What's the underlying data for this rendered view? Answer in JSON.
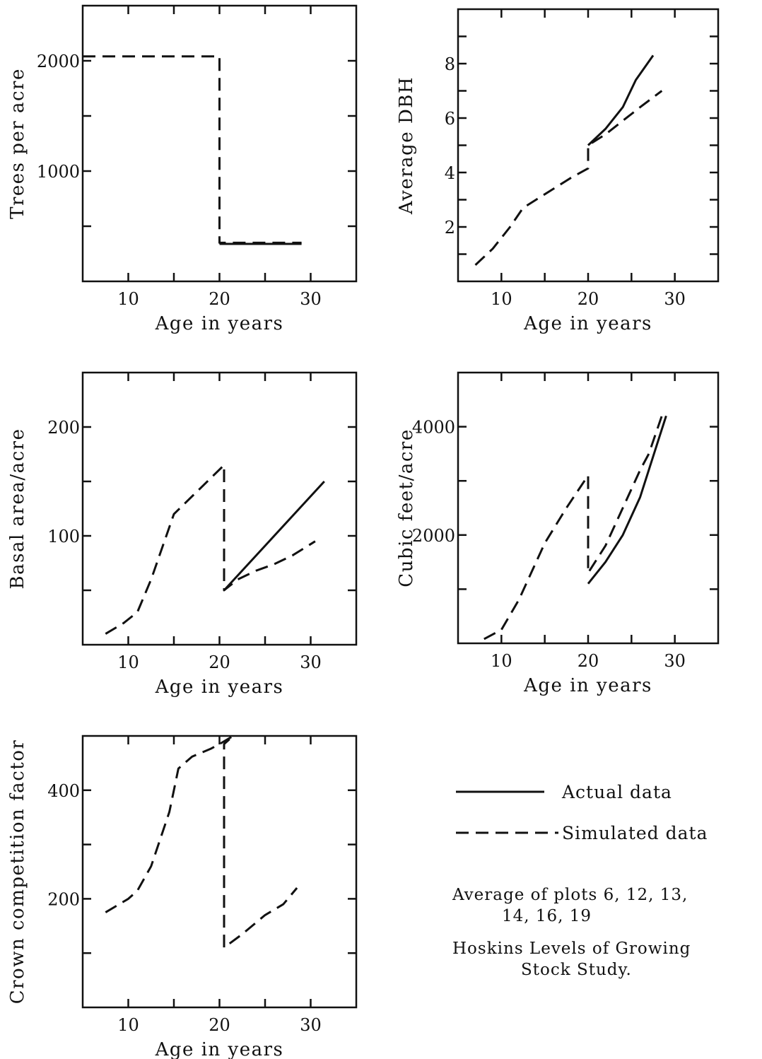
{
  "chart_data": [
    {
      "type": "line",
      "xlabel": "Age in years",
      "ylabel": "Trees per acre",
      "xlim": [
        5,
        35
      ],
      "ylim": [
        0,
        2500
      ],
      "xticks": [
        10,
        20,
        30
      ],
      "yticks": [
        1000,
        2000
      ],
      "grid": false,
      "series": [
        {
          "name": "Actual data",
          "style": "solid",
          "points": [
            [
              20,
              340
            ],
            [
              29,
              340
            ]
          ]
        },
        {
          "name": "Simulated data",
          "style": "dashed",
          "points": [
            [
              5,
              2040
            ],
            [
              20,
              2040
            ],
            [
              20,
              350
            ],
            [
              29,
              350
            ]
          ]
        }
      ]
    },
    {
      "type": "line",
      "xlabel": "Age in years",
      "ylabel": "Average DBH",
      "xlim": [
        5,
        35
      ],
      "ylim": [
        0,
        10
      ],
      "xticks": [
        10,
        20,
        30
      ],
      "yticks": [
        2,
        4,
        6,
        8
      ],
      "grid": false,
      "series": [
        {
          "name": "Actual data",
          "style": "solid",
          "points": [
            [
              20,
              5.0
            ],
            [
              22,
              5.6
            ],
            [
              24,
              6.4
            ],
            [
              25.5,
              7.4
            ],
            [
              27.5,
              8.3
            ]
          ]
        },
        {
          "name": "Simulated data",
          "style": "dashed",
          "points": [
            [
              7,
              0.6
            ],
            [
              9,
              1.2
            ],
            [
              11,
              2.0
            ],
            [
              12.5,
              2.7
            ],
            [
              14,
              3.0
            ],
            [
              16,
              3.4
            ],
            [
              18,
              3.8
            ],
            [
              20,
              4.15
            ],
            [
              20,
              5.0
            ],
            [
              22,
              5.4
            ],
            [
              24,
              5.9
            ],
            [
              26,
              6.4
            ],
            [
              28.5,
              7.0
            ]
          ]
        }
      ]
    },
    {
      "type": "line",
      "xlabel": "Age in years",
      "ylabel": "Basal area/acre",
      "xlim": [
        5,
        35
      ],
      "ylim": [
        0,
        250
      ],
      "xticks": [
        10,
        20,
        30
      ],
      "yticks": [
        100,
        200
      ],
      "grid": false,
      "series": [
        {
          "name": "Actual data",
          "style": "solid",
          "points": [
            [
              20.5,
              50
            ],
            [
              31.5,
              150
            ]
          ]
        },
        {
          "name": "Simulated data",
          "style": "dashed",
          "points": [
            [
              7.5,
              10
            ],
            [
              9.5,
              20
            ],
            [
              11,
              30
            ],
            [
              12.5,
              60
            ],
            [
              15,
              120
            ],
            [
              20.5,
              165
            ],
            [
              20.5,
              50
            ],
            [
              22,
              60
            ],
            [
              24,
              68
            ],
            [
              26,
              74
            ],
            [
              28,
              82
            ],
            [
              30.5,
              95
            ]
          ]
        }
      ]
    },
    {
      "type": "line",
      "xlabel": "Age in years",
      "ylabel": "Cubic feet/acre",
      "xlim": [
        5,
        35
      ],
      "ylim": [
        0,
        5000
      ],
      "xticks": [
        10,
        20,
        30
      ],
      "yticks": [
        2000,
        4000
      ],
      "grid": false,
      "series": [
        {
          "name": "Actual data",
          "style": "solid",
          "points": [
            [
              20,
              1100
            ],
            [
              22,
              1500
            ],
            [
              24,
              2000
            ],
            [
              26,
              2700
            ],
            [
              28,
              3700
            ],
            [
              29,
              4200
            ]
          ]
        },
        {
          "name": "Simulated data",
          "style": "dashed",
          "points": [
            [
              8,
              80
            ],
            [
              10,
              250
            ],
            [
              12,
              800
            ],
            [
              15,
              1850
            ],
            [
              17.5,
              2500
            ],
            [
              20,
              3100
            ],
            [
              20,
              1300
            ],
            [
              22,
              1800
            ],
            [
              24,
              2500
            ],
            [
              26,
              3200
            ],
            [
              27,
              3500
            ],
            [
              28.5,
              4200
            ]
          ]
        }
      ]
    },
    {
      "type": "line",
      "xlabel": "Age in years",
      "ylabel": "Crown competition factor",
      "xlim": [
        5,
        35
      ],
      "ylim": [
        0,
        500
      ],
      "xticks": [
        10,
        20,
        30
      ],
      "yticks": [
        200,
        400
      ],
      "grid": false,
      "series": [
        {
          "name": "Simulated data",
          "style": "dashed",
          "points": [
            [
              7.5,
              175
            ],
            [
              10,
              200
            ],
            [
              11,
              215
            ],
            [
              12.5,
              260
            ],
            [
              14.5,
              360
            ],
            [
              15.5,
              440
            ],
            [
              17,
              462
            ],
            [
              19,
              476
            ],
            [
              20,
              485
            ],
            [
              21.5,
              500
            ],
            [
              20.5,
              485
            ],
            [
              20.5,
              110
            ],
            [
              22.5,
              135
            ],
            [
              25,
              170
            ],
            [
              27,
              190
            ],
            [
              28.5,
              220
            ]
          ]
        }
      ]
    }
  ],
  "legend": {
    "actual_label": "Actual data",
    "simulated_label": "Simulated data"
  },
  "note": {
    "line1": "Average of plots 6, 12, 13,",
    "line2": "14, 16, 19",
    "line3": "Hoskins Levels of Growing",
    "line4": "Stock Study."
  }
}
